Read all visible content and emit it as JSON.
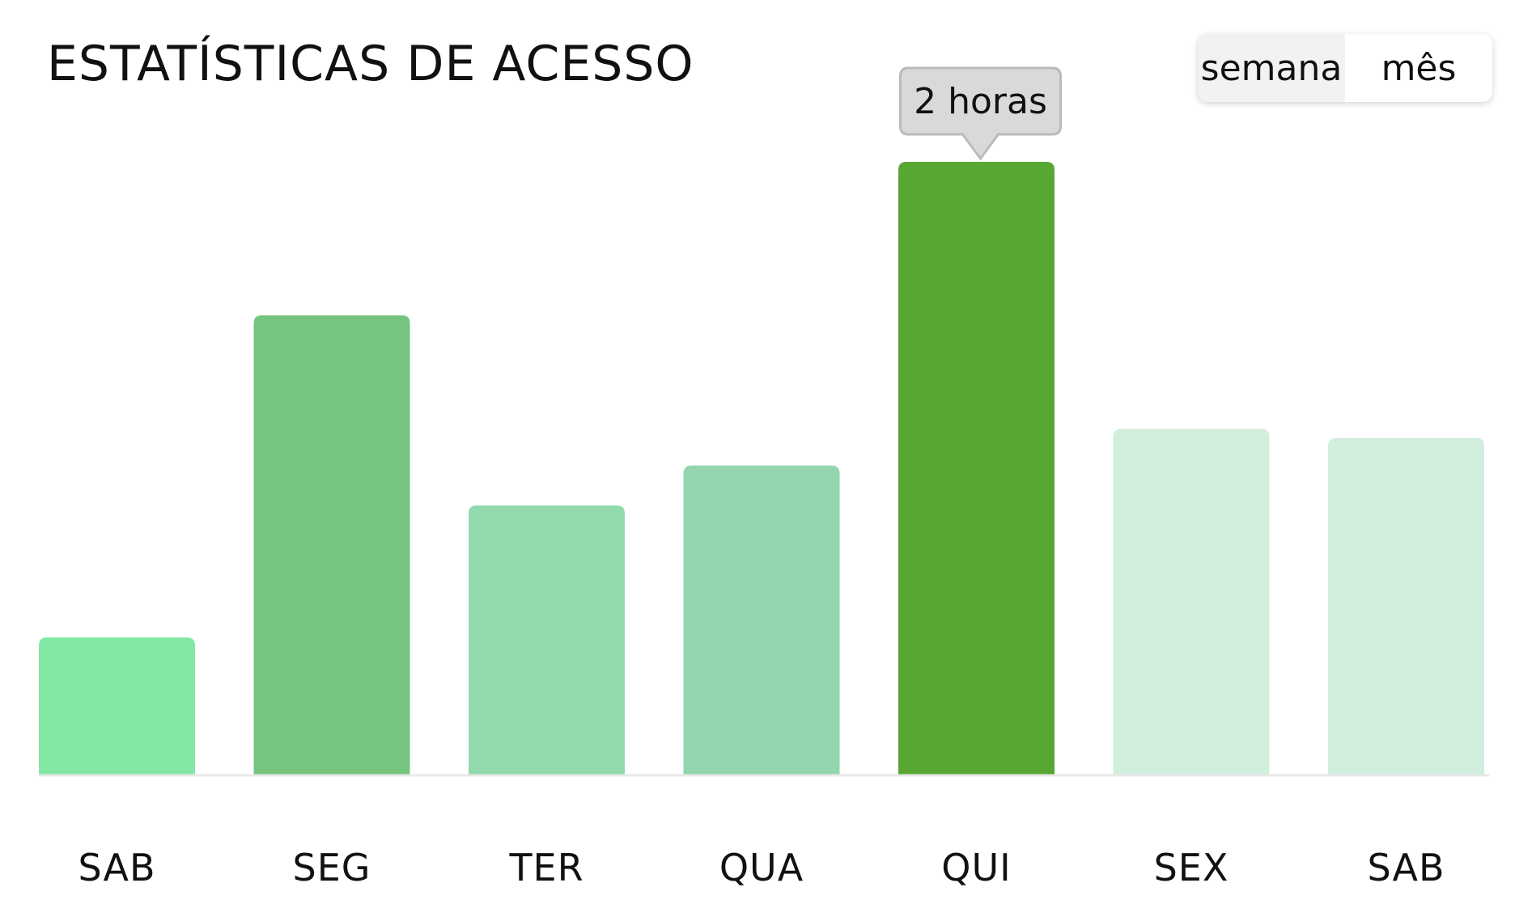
{
  "header": {
    "title": "ESTATÍSTICAS DE ACESSO"
  },
  "period_toggle": {
    "week_label": "semana",
    "month_label": "mês",
    "selected": "semana"
  },
  "tooltip": {
    "text": "2 horas",
    "category_index": 4
  },
  "colors": {
    "highlight": "#58A732",
    "baseline": "#E8E8E8",
    "tooltip_bg": "#D9D9D9",
    "tooltip_border": "#BBBBBB"
  },
  "chart_data": {
    "type": "bar",
    "categories": [
      "SAB",
      "SEG",
      "TER",
      "QUA",
      "QUI",
      "SEX",
      "SAB"
    ],
    "values": [
      0.45,
      1.5,
      0.88,
      1.01,
      2.0,
      1.13,
      1.1
    ],
    "units": "horas",
    "ylim": [
      0,
      2.0
    ],
    "bar_colors": [
      "#84E8A5",
      "#76C57F",
      "#93D9AE",
      "#93D5AD",
      "#58A732",
      "#D2EEDD",
      "#D2EEDD"
    ],
    "grid": false,
    "legend": "none"
  }
}
